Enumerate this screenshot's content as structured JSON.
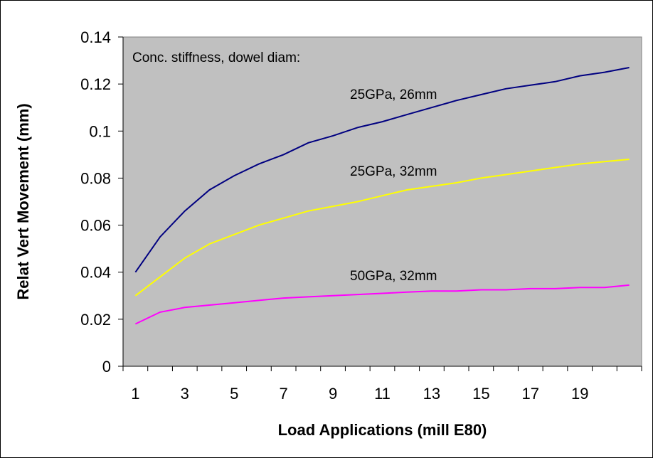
{
  "chart_data": {
    "type": "line",
    "title": "",
    "xlabel": "Load Applications (mill E80)",
    "ylabel": "Relat Vert Movement (mm)",
    "ylim": [
      0,
      0.14
    ],
    "yticks": [
      0,
      0.02,
      0.04,
      0.06,
      0.08,
      0.1,
      0.12,
      0.14
    ],
    "ytick_labels": [
      "0",
      "0.02",
      "0.04",
      "0.06",
      "0.08",
      "0.1",
      "0.12",
      "0.14"
    ],
    "x": [
      1,
      2,
      3,
      4,
      5,
      6,
      7,
      8,
      9,
      10,
      11,
      12,
      13,
      14,
      15,
      16,
      17,
      18,
      19,
      20,
      21
    ],
    "xtick_labels": [
      "1",
      "3",
      "5",
      "7",
      "9",
      "11",
      "13",
      "15",
      "17",
      "19"
    ],
    "grid": false,
    "plot_background": "#c0c0c0",
    "annotation_header": "Conc. stiffness, dowel diam:",
    "series": [
      {
        "name": "25GPa, 26mm",
        "color": "#000080",
        "values": [
          0.04,
          0.055,
          0.066,
          0.075,
          0.081,
          0.086,
          0.09,
          0.095,
          0.098,
          0.1015,
          0.104,
          0.107,
          0.11,
          0.113,
          0.1155,
          0.118,
          0.1195,
          0.121,
          0.1235,
          0.125,
          0.127
        ]
      },
      {
        "name": "25GPa, 32mm",
        "color": "#ffff00",
        "values": [
          0.03,
          0.038,
          0.046,
          0.052,
          0.056,
          0.06,
          0.063,
          0.066,
          0.068,
          0.07,
          0.0725,
          0.075,
          0.0765,
          0.078,
          0.08,
          0.0815,
          0.083,
          0.0845,
          0.086,
          0.087,
          0.088
        ]
      },
      {
        "name": "50GPa, 32mm",
        "color": "#ff00ff",
        "values": [
          0.018,
          0.023,
          0.025,
          0.026,
          0.027,
          0.028,
          0.029,
          0.0295,
          0.03,
          0.0305,
          0.031,
          0.0315,
          0.032,
          0.032,
          0.0325,
          0.0325,
          0.033,
          0.033,
          0.0335,
          0.0335,
          0.0345
        ]
      }
    ]
  }
}
